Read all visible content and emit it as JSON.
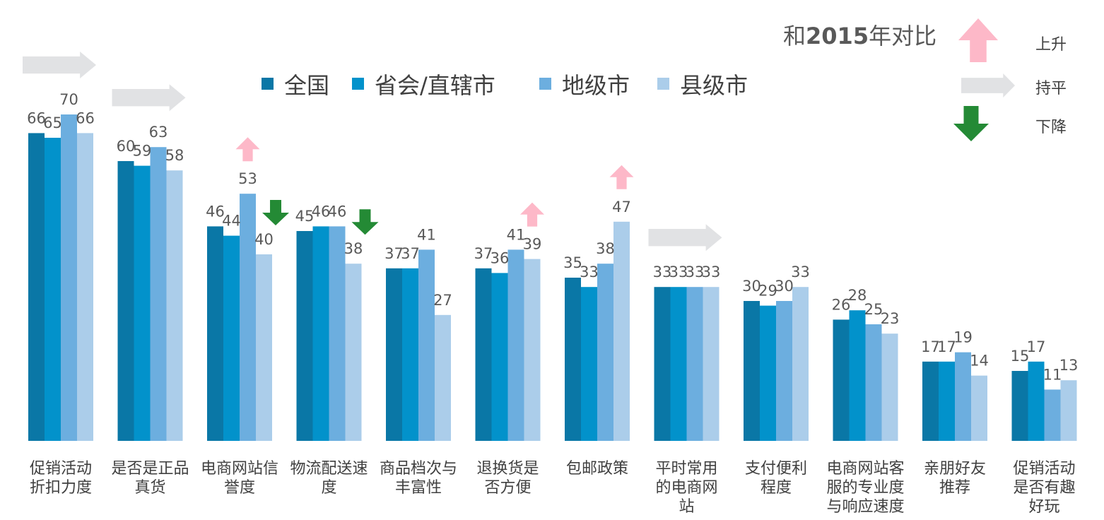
{
  "chart_data": {
    "type": "bar",
    "categories": [
      [
        "促销活动",
        "折扣力度"
      ],
      [
        "是否是正品",
        "真货"
      ],
      [
        "电商网站信",
        "誉度"
      ],
      [
        "物流配送速",
        "度"
      ],
      [
        "商品档次与",
        "丰富性"
      ],
      [
        "退换货是",
        "否方便"
      ],
      [
        "包邮政策"
      ],
      [
        "平时常用",
        "的电商网",
        "站"
      ],
      [
        "支付便利",
        "程度"
      ],
      [
        "电商网站客",
        "服的专业度",
        "与响应速度"
      ],
      [
        "亲朋好友",
        "推荐"
      ],
      [
        "促销活动",
        "是否有趣",
        "好玩"
      ]
    ],
    "series": [
      {
        "name": "全国",
        "color": "#0A77A6",
        "values": [
          66,
          60,
          46,
          45,
          37,
          37,
          35,
          33,
          30,
          26,
          17,
          15
        ]
      },
      {
        "name": "省会/直辖市",
        "color": "#0292CB",
        "values": [
          65,
          59,
          44,
          46,
          37,
          36,
          33,
          33,
          29,
          28,
          17,
          17
        ]
      },
      {
        "name": "地级市",
        "color": "#6CAEDF",
        "values": [
          70,
          63,
          53,
          46,
          41,
          41,
          38,
          33,
          30,
          25,
          19,
          11
        ]
      },
      {
        "name": "县级市",
        "color": "#ABCDEA",
        "values": [
          66,
          58,
          40,
          38,
          27,
          39,
          47,
          33,
          33,
          23,
          14,
          13
        ]
      }
    ],
    "ylim": [
      0,
      75
    ],
    "grid": false,
    "legend_position": "top-center",
    "trend_markers": [
      {
        "category_index": 0,
        "trend": "持平",
        "scope": "category"
      },
      {
        "category_index": 1,
        "trend": "持平",
        "scope": "category"
      },
      {
        "category_index": 2,
        "trend": "上升",
        "series": "地级市"
      },
      {
        "category_index": 2,
        "trend": "下降",
        "series": "县级市"
      },
      {
        "category_index": 3,
        "trend": "下降",
        "series": "县级市"
      },
      {
        "category_index": 5,
        "trend": "上升",
        "series": "县级市"
      },
      {
        "category_index": 6,
        "trend": "上升",
        "series": "县级市"
      },
      {
        "category_index": 7,
        "trend": "持平",
        "scope": "category"
      }
    ]
  },
  "comparison_key": {
    "title_prefix": "和",
    "title_year": "2015",
    "title_suffix": "年对比",
    "items": [
      {
        "trend": "上升",
        "label": "上升",
        "color": "#FDB8C8",
        "icon": "up-arrow-icon"
      },
      {
        "trend": "持平",
        "label": "持平",
        "color": "#E1E2E4",
        "icon": "right-arrow-icon"
      },
      {
        "trend": "下降",
        "label": "下降",
        "color": "#248A35",
        "icon": "down-arrow-icon"
      }
    ]
  }
}
